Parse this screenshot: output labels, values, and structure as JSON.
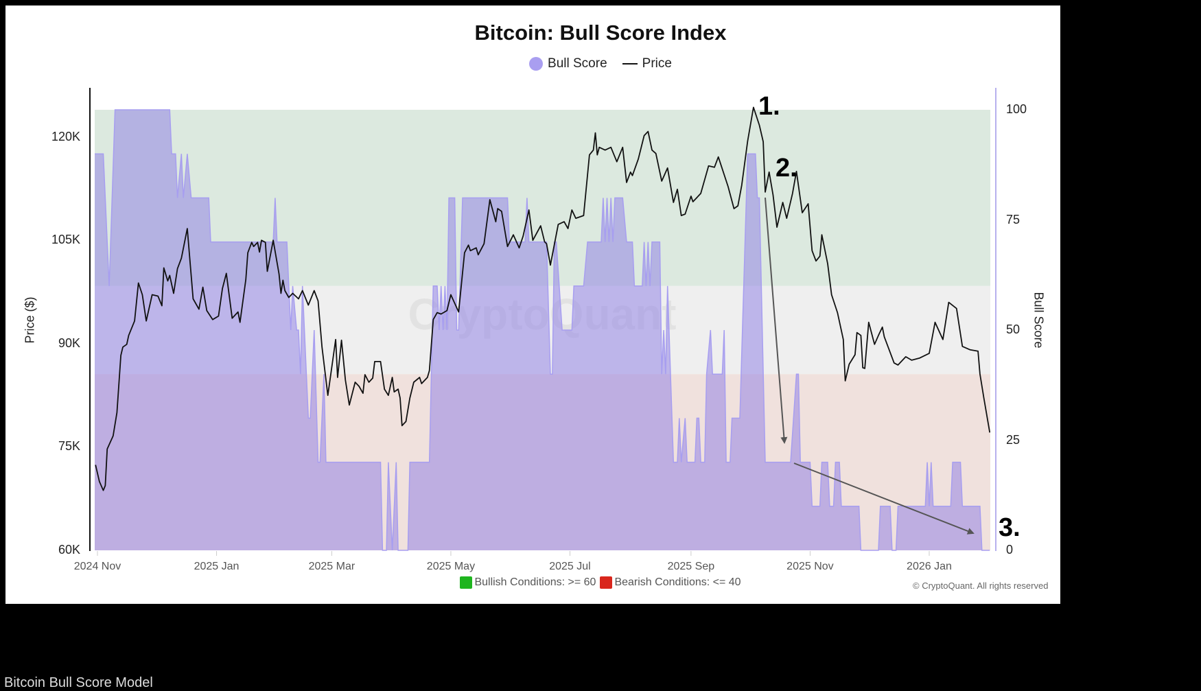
{
  "title": "Bitcoin: Bull Score Index",
  "legend": [
    {
      "label": "Bull Score",
      "color": "#a99ef0",
      "marker": "circle"
    },
    {
      "label": "Price",
      "color": "#111111",
      "marker": "line"
    }
  ],
  "watermark": "CryptoQuant",
  "conditions": {
    "bullish": {
      "label": "Bullish Conditions: >= 60",
      "color": "#1fb51f"
    },
    "bearish": {
      "label": "Bearish Conditions: <= 40",
      "color": "#d9261c"
    }
  },
  "copyright": "© CryptoQuant. All rights reserved",
  "caption": "Bitcoin Bull Score Model",
  "annotations": [
    "1.",
    "2.",
    "3."
  ],
  "chart_data": {
    "type": "area+line",
    "title": "Bitcoin: Bull Score Index",
    "xlabel": "",
    "ylabel_left": "Price ($)",
    "ylabel_right": "Bull Score",
    "x_ticks": [
      "2024 Nov",
      "2025 Jan",
      "2025 Mar",
      "2025 May",
      "2025 Jul",
      "2025 Sep",
      "2025 Nov",
      "2026 Jan"
    ],
    "x_tick_dates": [
      "2024-11-01",
      "2025-01-01",
      "2025-03-01",
      "2025-05-01",
      "2025-07-01",
      "2025-09-01",
      "2025-11-01",
      "2026-01-01"
    ],
    "xlim": [
      "2024-10-30",
      "2026-02-01"
    ],
    "y_left_ticks": [
      "60K",
      "75K",
      "90K",
      "105K",
      "120K"
    ],
    "y_left_tick_values": [
      60000,
      75000,
      90000,
      105000,
      120000
    ],
    "y_left_lim": [
      60000,
      126000
    ],
    "y_right_ticks": [
      "0",
      "25",
      "50",
      "75",
      "100"
    ],
    "y_right_tick_values": [
      0,
      25,
      50,
      75,
      100
    ],
    "y_right_lim": [
      0,
      100
    ],
    "bands": [
      {
        "from": 60,
        "to": 100,
        "color": "#dce9df"
      },
      {
        "from": 40,
        "to": 60,
        "color": "#efefef"
      },
      {
        "from": 0,
        "to": 40,
        "color": "#f0e1dd"
      }
    ],
    "legend_position": "top",
    "grid": false,
    "series": [
      {
        "name": "Bull Score",
        "axis": "right",
        "type": "area",
        "color": "#8b7be5",
        "dates": [
          "2024-10-30",
          "2024-11-04",
          "2024-11-07",
          "2024-11-10",
          "2024-12-08",
          "2024-12-09",
          "2024-12-11",
          "2024-12-12",
          "2024-12-14",
          "2024-12-15",
          "2024-12-17",
          "2024-12-19",
          "2024-12-28",
          "2024-12-29",
          "2025-01-30",
          "2025-01-31",
          "2025-02-01",
          "2025-02-06",
          "2025-02-07",
          "2025-02-08",
          "2025-02-09",
          "2025-02-11",
          "2025-02-12",
          "2025-02-13",
          "2025-02-14",
          "2025-02-17",
          "2025-02-18",
          "2025-02-20",
          "2025-02-22",
          "2025-02-23",
          "2025-02-25",
          "2025-02-26",
          "2025-03-26",
          "2025-03-27",
          "2025-03-29",
          "2025-03-30",
          "2025-04-01",
          "2025-04-03",
          "2025-04-04",
          "2025-04-09",
          "2025-04-10",
          "2025-04-20",
          "2025-04-22",
          "2025-04-24",
          "2025-04-25",
          "2025-04-26",
          "2025-04-27",
          "2025-04-28",
          "2025-04-29",
          "2025-04-30",
          "2025-05-03",
          "2025-05-04",
          "2025-05-05",
          "2025-05-07",
          "2025-05-30",
          "2025-05-31",
          "2025-06-08",
          "2025-06-09",
          "2025-06-10",
          "2025-06-19",
          "2025-06-21",
          "2025-06-22",
          "2025-06-23",
          "2025-06-24",
          "2025-06-27",
          "2025-07-02",
          "2025-07-03",
          "2025-07-08",
          "2025-07-10",
          "2025-07-17",
          "2025-07-18",
          "2025-07-19",
          "2025-07-20",
          "2025-07-21",
          "2025-07-22",
          "2025-07-23",
          "2025-07-24",
          "2025-07-28",
          "2025-07-30",
          "2025-08-02",
          "2025-08-03",
          "2025-08-07",
          "2025-08-08",
          "2025-08-09",
          "2025-08-10",
          "2025-08-11",
          "2025-08-12",
          "2025-08-16",
          "2025-08-17",
          "2025-08-18",
          "2025-08-19",
          "2025-08-20",
          "2025-08-23",
          "2025-08-25",
          "2025-08-26",
          "2025-08-27",
          "2025-08-29",
          "2025-08-30",
          "2025-09-03",
          "2025-09-04",
          "2025-09-05",
          "2025-09-06",
          "2025-09-08",
          "2025-09-09",
          "2025-09-11",
          "2025-09-12",
          "2025-09-17",
          "2025-09-18",
          "2025-09-19",
          "2025-09-21",
          "2025-09-22",
          "2025-09-26",
          "2025-09-30",
          "2025-10-04",
          "2025-10-05",
          "2025-10-06",
          "2025-10-09",
          "2025-10-22",
          "2025-10-25",
          "2025-10-26",
          "2025-10-27",
          "2025-11-01",
          "2025-11-02",
          "2025-11-06",
          "2025-11-07",
          "2025-11-10",
          "2025-11-11",
          "2025-11-13",
          "2025-11-14",
          "2025-11-16",
          "2025-11-17",
          "2025-11-26",
          "2025-11-27",
          "2025-12-06",
          "2025-12-07",
          "2025-12-12",
          "2025-12-13",
          "2025-12-15",
          "2025-12-16",
          "2025-12-30",
          "2025-12-31",
          "2026-01-01",
          "2026-01-02",
          "2026-01-03",
          "2026-01-12",
          "2026-01-13",
          "2026-01-17",
          "2026-01-18",
          "2026-01-27",
          "2026-01-28",
          "2026-02-01"
        ],
        "values": [
          90,
          90,
          60,
          100,
          100,
          90,
          90,
          80,
          90,
          80,
          90,
          80,
          80,
          70,
          70,
          80,
          70,
          70,
          60,
          50,
          60,
          50,
          50,
          40,
          60,
          30,
          30,
          50,
          20,
          20,
          40,
          20,
          20,
          0,
          0,
          20,
          0,
          20,
          0,
          0,
          20,
          20,
          60,
          60,
          50,
          60,
          50,
          60,
          50,
          80,
          80,
          50,
          50,
          80,
          80,
          70,
          70,
          80,
          70,
          70,
          40,
          40,
          70,
          70,
          50,
          50,
          60,
          60,
          70,
          70,
          80,
          70,
          80,
          70,
          80,
          70,
          80,
          80,
          70,
          70,
          60,
          60,
          70,
          60,
          70,
          60,
          70,
          70,
          40,
          50,
          40,
          60,
          20,
          20,
          30,
          20,
          30,
          20,
          20,
          30,
          30,
          20,
          20,
          40,
          50,
          40,
          40,
          50,
          20,
          20,
          30,
          30,
          90,
          90,
          80,
          80,
          20,
          20,
          40,
          40,
          20,
          20,
          10,
          10,
          20,
          20,
          10,
          10,
          20,
          20,
          10,
          10,
          0,
          0,
          10,
          10,
          0,
          0,
          10,
          10,
          20,
          10,
          20,
          10,
          10,
          20,
          20,
          10,
          10,
          0,
          0
        ]
      },
      {
        "name": "Price",
        "axis": "left",
        "type": "line",
        "color": "#111111",
        "dates": [
          "2024-10-31",
          "2024-11-02",
          "2024-11-04",
          "2024-11-05",
          "2024-11-06",
          "2024-11-09",
          "2024-11-11",
          "2024-11-13",
          "2024-11-14",
          "2024-11-16",
          "2024-11-17",
          "2024-11-20",
          "2024-11-22",
          "2024-11-24",
          "2024-11-26",
          "2024-11-29",
          "2024-12-02",
          "2024-12-04",
          "2024-12-05",
          "2024-12-07",
          "2024-12-08",
          "2024-12-10",
          "2024-12-12",
          "2024-12-14",
          "2024-12-17",
          "2024-12-20",
          "2024-12-23",
          "2024-12-25",
          "2024-12-27",
          "2024-12-30",
          "2025-01-02",
          "2025-01-04",
          "2025-01-06",
          "2025-01-09",
          "2025-01-12",
          "2025-01-13",
          "2025-01-16",
          "2025-01-17",
          "2025-01-19",
          "2025-01-20",
          "2025-01-22",
          "2025-01-23",
          "2025-01-24",
          "2025-01-26",
          "2025-01-27",
          "2025-01-30",
          "2025-02-02",
          "2025-02-03",
          "2025-02-04",
          "2025-02-05",
          "2025-02-07",
          "2025-02-09",
          "2025-02-12",
          "2025-02-14",
          "2025-02-17",
          "2025-02-20",
          "2025-02-22",
          "2025-02-24",
          "2025-02-27",
          "2025-03-03",
          "2025-03-04",
          "2025-03-06",
          "2025-03-08",
          "2025-03-10",
          "2025-03-13",
          "2025-03-15",
          "2025-03-17",
          "2025-03-18",
          "2025-03-20",
          "2025-03-22",
          "2025-03-23",
          "2025-03-26",
          "2025-03-28",
          "2025-03-30",
          "2025-04-01",
          "2025-04-02",
          "2025-04-04",
          "2025-04-05",
          "2025-04-06",
          "2025-04-08",
          "2025-04-10",
          "2025-04-12",
          "2025-04-15",
          "2025-04-16",
          "2025-04-19",
          "2025-04-20",
          "2025-04-22",
          "2025-04-24",
          "2025-04-26",
          "2025-04-29",
          "2025-05-01",
          "2025-05-05",
          "2025-05-08",
          "2025-05-10",
          "2025-05-11",
          "2025-05-14",
          "2025-05-15",
          "2025-05-18",
          "2025-05-21",
          "2025-05-24",
          "2025-05-25",
          "2025-05-27",
          "2025-05-30",
          "2025-06-02",
          "2025-06-05",
          "2025-06-07",
          "2025-06-10",
          "2025-06-12",
          "2025-06-16",
          "2025-06-18",
          "2025-06-19",
          "2025-06-21",
          "2025-06-25",
          "2025-06-28",
          "2025-06-30",
          "2025-07-02",
          "2025-07-04",
          "2025-07-08",
          "2025-07-11",
          "2025-07-13",
          "2025-07-14",
          "2025-07-15",
          "2025-07-16",
          "2025-07-19",
          "2025-07-22",
          "2025-07-25",
          "2025-07-28",
          "2025-07-30",
          "2025-08-01",
          "2025-08-02",
          "2025-08-05",
          "2025-08-08",
          "2025-08-10",
          "2025-08-12",
          "2025-08-14",
          "2025-08-17",
          "2025-08-20",
          "2025-08-23",
          "2025-08-25",
          "2025-08-27",
          "2025-08-29",
          "2025-09-01",
          "2025-09-02",
          "2025-09-06",
          "2025-09-10",
          "2025-09-13",
          "2025-09-15",
          "2025-09-20",
          "2025-09-23",
          "2025-09-25",
          "2025-09-27",
          "2025-09-30",
          "2025-10-03",
          "2025-10-06",
          "2025-10-08",
          "2025-10-09",
          "2025-10-11",
          "2025-10-13",
          "2025-10-15",
          "2025-10-18",
          "2025-10-20",
          "2025-10-23",
          "2025-10-25",
          "2025-10-28",
          "2025-10-31",
          "2025-11-02",
          "2025-11-04",
          "2025-11-06",
          "2025-11-07",
          "2025-11-10",
          "2025-11-12",
          "2025-11-15",
          "2025-11-18",
          "2025-11-19",
          "2025-11-21",
          "2025-11-24",
          "2025-11-25",
          "2025-11-27",
          "2025-11-28",
          "2025-11-29",
          "2025-12-01",
          "2025-12-04",
          "2025-12-06",
          "2025-12-08",
          "2025-12-09",
          "2025-12-14",
          "2025-12-16",
          "2025-12-20",
          "2025-12-23",
          "2025-12-27",
          "2026-01-01",
          "2026-01-04",
          "2026-01-08",
          "2026-01-11",
          "2026-01-15",
          "2026-01-18",
          "2026-01-22",
          "2026-01-26",
          "2026-01-27",
          "2026-01-29",
          "2026-02-01"
        ],
        "values": [
          72400,
          70000,
          68700,
          69400,
          74700,
          76600,
          80000,
          88300,
          89500,
          89900,
          91200,
          93300,
          98800,
          97100,
          93300,
          97100,
          96900,
          95500,
          101000,
          99100,
          99900,
          97300,
          100900,
          102400,
          106700,
          96500,
          95000,
          98200,
          94800,
          93500,
          94000,
          98000,
          100200,
          93700,
          94600,
          93100,
          99300,
          103200,
          104700,
          104100,
          104700,
          103300,
          105000,
          104700,
          100500,
          105000,
          100100,
          97300,
          99200,
          97700,
          96700,
          97300,
          96500,
          97700,
          95600,
          97700,
          96200,
          89500,
          82500,
          90600,
          85100,
          90500,
          84700,
          81100,
          84400,
          83800,
          82800,
          85500,
          84400,
          85000,
          87400,
          87400,
          83400,
          82500,
          85100,
          83000,
          83400,
          82100,
          78100,
          78700,
          82100,
          84400,
          85100,
          84200,
          85100,
          86100,
          93500,
          94500,
          94300,
          94800,
          97100,
          94600,
          103200,
          104300,
          103500,
          103900,
          102900,
          104500,
          110900,
          107700,
          109600,
          109200,
          104100,
          105800,
          103900,
          105600,
          109400,
          105000,
          107100,
          104800,
          104500,
          101400,
          107300,
          107700,
          106700,
          109400,
          108200,
          108600,
          117400,
          118100,
          120600,
          117400,
          118500,
          118100,
          118500,
          116400,
          118500,
          113400,
          114900,
          114400,
          116800,
          120200,
          120800,
          118100,
          117600,
          113600,
          115500,
          110500,
          112400,
          108600,
          108800,
          111400,
          110600,
          111800,
          115800,
          115600,
          117100,
          112800,
          109600,
          110000,
          113000,
          119400,
          124300,
          121700,
          119300,
          112000,
          114900,
          111600,
          106900,
          110500,
          108200,
          111800,
          115000,
          109000,
          110300,
          103500,
          102000,
          102700,
          105800,
          101600,
          97100,
          94500,
          90600,
          84600,
          87000,
          88400,
          91600,
          91200,
          86500,
          86400,
          93100,
          89900,
          91200,
          92400,
          91000,
          87200,
          86900,
          88100,
          87600,
          87900,
          88600,
          93100,
          90600,
          96000,
          95100,
          89600,
          89100,
          88900,
          85600,
          82100,
          77100
        ]
      }
    ]
  }
}
